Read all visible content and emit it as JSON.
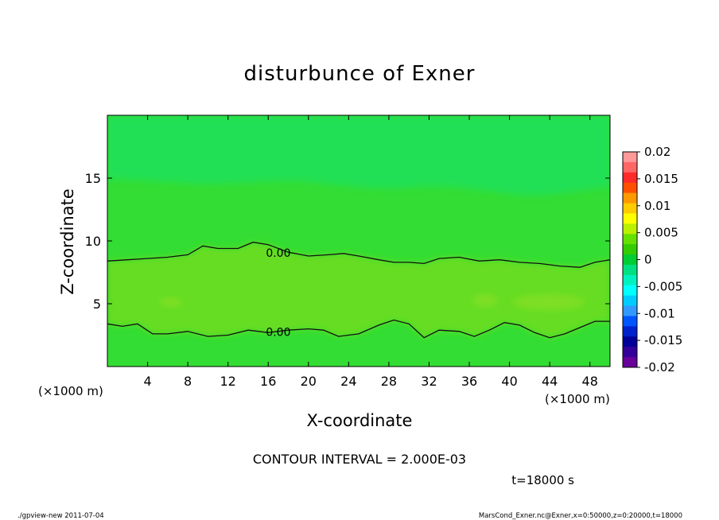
{
  "chart_data": {
    "type": "heatmap",
    "title": "disturbunce of Exner",
    "xlabel": "X-coordinate",
    "ylabel": "Z-coordinate",
    "x_unit": "(×1000 m)",
    "y_unit": "(×1000 m)",
    "xlim": [
      0,
      50
    ],
    "ylim": [
      0,
      20
    ],
    "x_ticks": [
      4,
      8,
      12,
      16,
      20,
      24,
      28,
      32,
      36,
      40,
      44,
      48
    ],
    "y_ticks": [
      5,
      10,
      15
    ],
    "colorbar": {
      "ticks": [
        "0.02",
        "0.015",
        "0.01",
        "0.005",
        "0",
        "-0.005",
        "-0.01",
        "-0.015",
        "-0.02"
      ],
      "colors": [
        "#ff9999",
        "#ff6666",
        "#ff2a2a",
        "#ff5000",
        "#ff9900",
        "#ffcc00",
        "#ffff00",
        "#bbf000",
        "#66e000",
        "#33cc00",
        "#00cc33",
        "#00e080",
        "#00f0c0",
        "#00ffff",
        "#00ccff",
        "#3399ff",
        "#0055ff",
        "#0022cc",
        "#000099",
        "#330099",
        "#660099"
      ]
    },
    "field": {
      "background_color": "#33dd33",
      "lower_band_color": "#66dd22",
      "upper_region_color": "#22e055"
    },
    "contours": [
      {
        "level": "0.00",
        "points": [
          [
            0,
            8.4
          ],
          [
            2,
            8.5
          ],
          [
            4,
            8.6
          ],
          [
            6,
            8.7
          ],
          [
            8,
            8.9
          ],
          [
            9.5,
            9.6
          ],
          [
            11,
            9.4
          ],
          [
            13,
            9.4
          ],
          [
            14.5,
            9.9
          ],
          [
            16,
            9.7
          ],
          [
            18,
            9.1
          ],
          [
            20,
            8.8
          ],
          [
            22,
            8.9
          ],
          [
            23.5,
            9.0
          ],
          [
            25,
            8.8
          ],
          [
            27,
            8.5
          ],
          [
            28.5,
            8.3
          ],
          [
            30,
            8.3
          ],
          [
            31.5,
            8.2
          ],
          [
            33,
            8.6
          ],
          [
            35,
            8.7
          ],
          [
            37,
            8.4
          ],
          [
            39,
            8.5
          ],
          [
            41,
            8.3
          ],
          [
            43,
            8.2
          ],
          [
            45,
            8.0
          ],
          [
            47,
            7.9
          ],
          [
            48.5,
            8.3
          ],
          [
            50,
            8.5
          ]
        ]
      },
      {
        "level": "0.00",
        "points": [
          [
            0,
            3.4
          ],
          [
            1.5,
            3.2
          ],
          [
            3,
            3.4
          ],
          [
            4.5,
            2.6
          ],
          [
            6,
            2.6
          ],
          [
            8,
            2.8
          ],
          [
            10,
            2.4
          ],
          [
            12,
            2.5
          ],
          [
            14,
            2.9
          ],
          [
            16,
            2.7
          ],
          [
            18,
            2.9
          ],
          [
            20,
            3.0
          ],
          [
            21.5,
            2.9
          ],
          [
            23,
            2.4
          ],
          [
            25,
            2.6
          ],
          [
            27,
            3.3
          ],
          [
            28.5,
            3.7
          ],
          [
            30,
            3.4
          ],
          [
            31.5,
            2.3
          ],
          [
            33,
            2.9
          ],
          [
            35,
            2.8
          ],
          [
            36.5,
            2.4
          ],
          [
            38,
            2.9
          ],
          [
            39.5,
            3.5
          ],
          [
            41,
            3.3
          ],
          [
            42.5,
            2.7
          ],
          [
            44,
            2.3
          ],
          [
            45.5,
            2.6
          ],
          [
            47,
            3.1
          ],
          [
            48.5,
            3.6
          ],
          [
            50,
            3.6
          ]
        ]
      }
    ],
    "contour_labels": [
      {
        "text": "0.00",
        "x": 17.0,
        "y": 9.0
      },
      {
        "text": "0.00",
        "x": 17.0,
        "y": 2.7
      }
    ]
  },
  "annotations": {
    "contour_interval": "CONTOUR INTERVAL = 2.000E-03",
    "time": "t=18000 s",
    "footer_left": "./gpview-new   2011-07-04",
    "footer_right": "MarsCond_Exner.nc@Exner,x=0:50000,z=0:20000,t=18000"
  }
}
